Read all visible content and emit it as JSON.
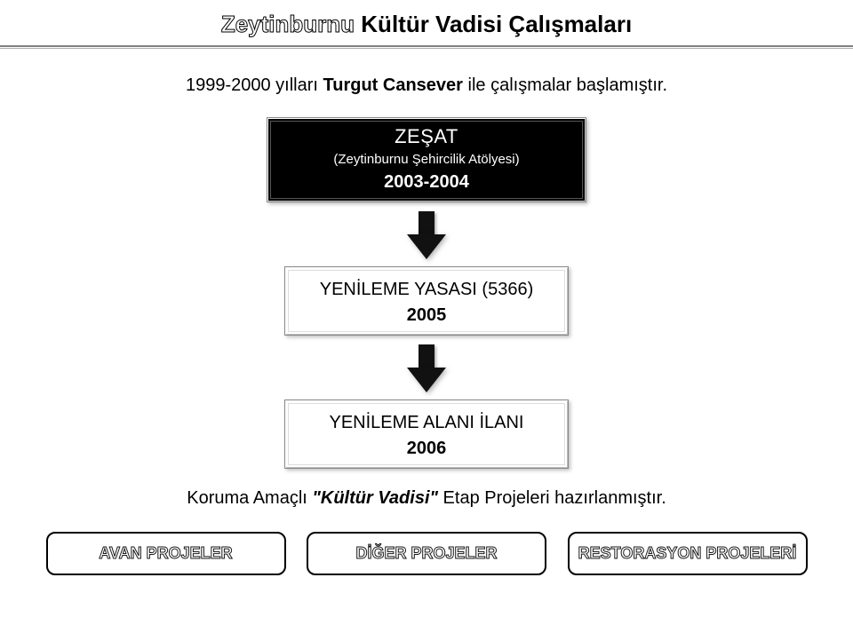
{
  "colors": {
    "background": "#ffffff",
    "text": "#000000",
    "rule_thick": "#808080",
    "rule_thin": "#b0b0b0",
    "panel_zesat_bg": "#000000",
    "panel_zesat_text": "#ffffff",
    "arrow_fill": "#111111",
    "button_border": "#000000"
  },
  "title": {
    "w1_outline": "Zeytinburnu",
    "rest": "Kültür Vadisi Çalışmaları"
  },
  "intro": {
    "prefix": "1999-2000 yılları ",
    "name_bold": "Turgut Cansever",
    "suffix": " ile çalışmalar başlamıştır."
  },
  "flow": {
    "zesat": {
      "type": "label-box",
      "line1": "ZEŞAT",
      "line2": "(Zeytinburnu Şehircilik Atölyesi)",
      "year": "2003-2004"
    },
    "step2": {
      "type": "label-box",
      "line1": "YENİLEME YASASI (5366)",
      "year": "2005"
    },
    "step3": {
      "type": "label-box",
      "line1": "YENİLEME ALANI İLANI",
      "year": "2006"
    }
  },
  "closing": {
    "prefix": "Koruma Amaçlı ",
    "italic": "\"Kültür Vadisi\"",
    "suffix": " Etap Projeleri hazırlanmıştır."
  },
  "projects": {
    "btn1": "AVAN PROJELER",
    "btn2": "DİĞER PROJELER",
    "btn3": "RESTORASYON PROJELERİ"
  }
}
